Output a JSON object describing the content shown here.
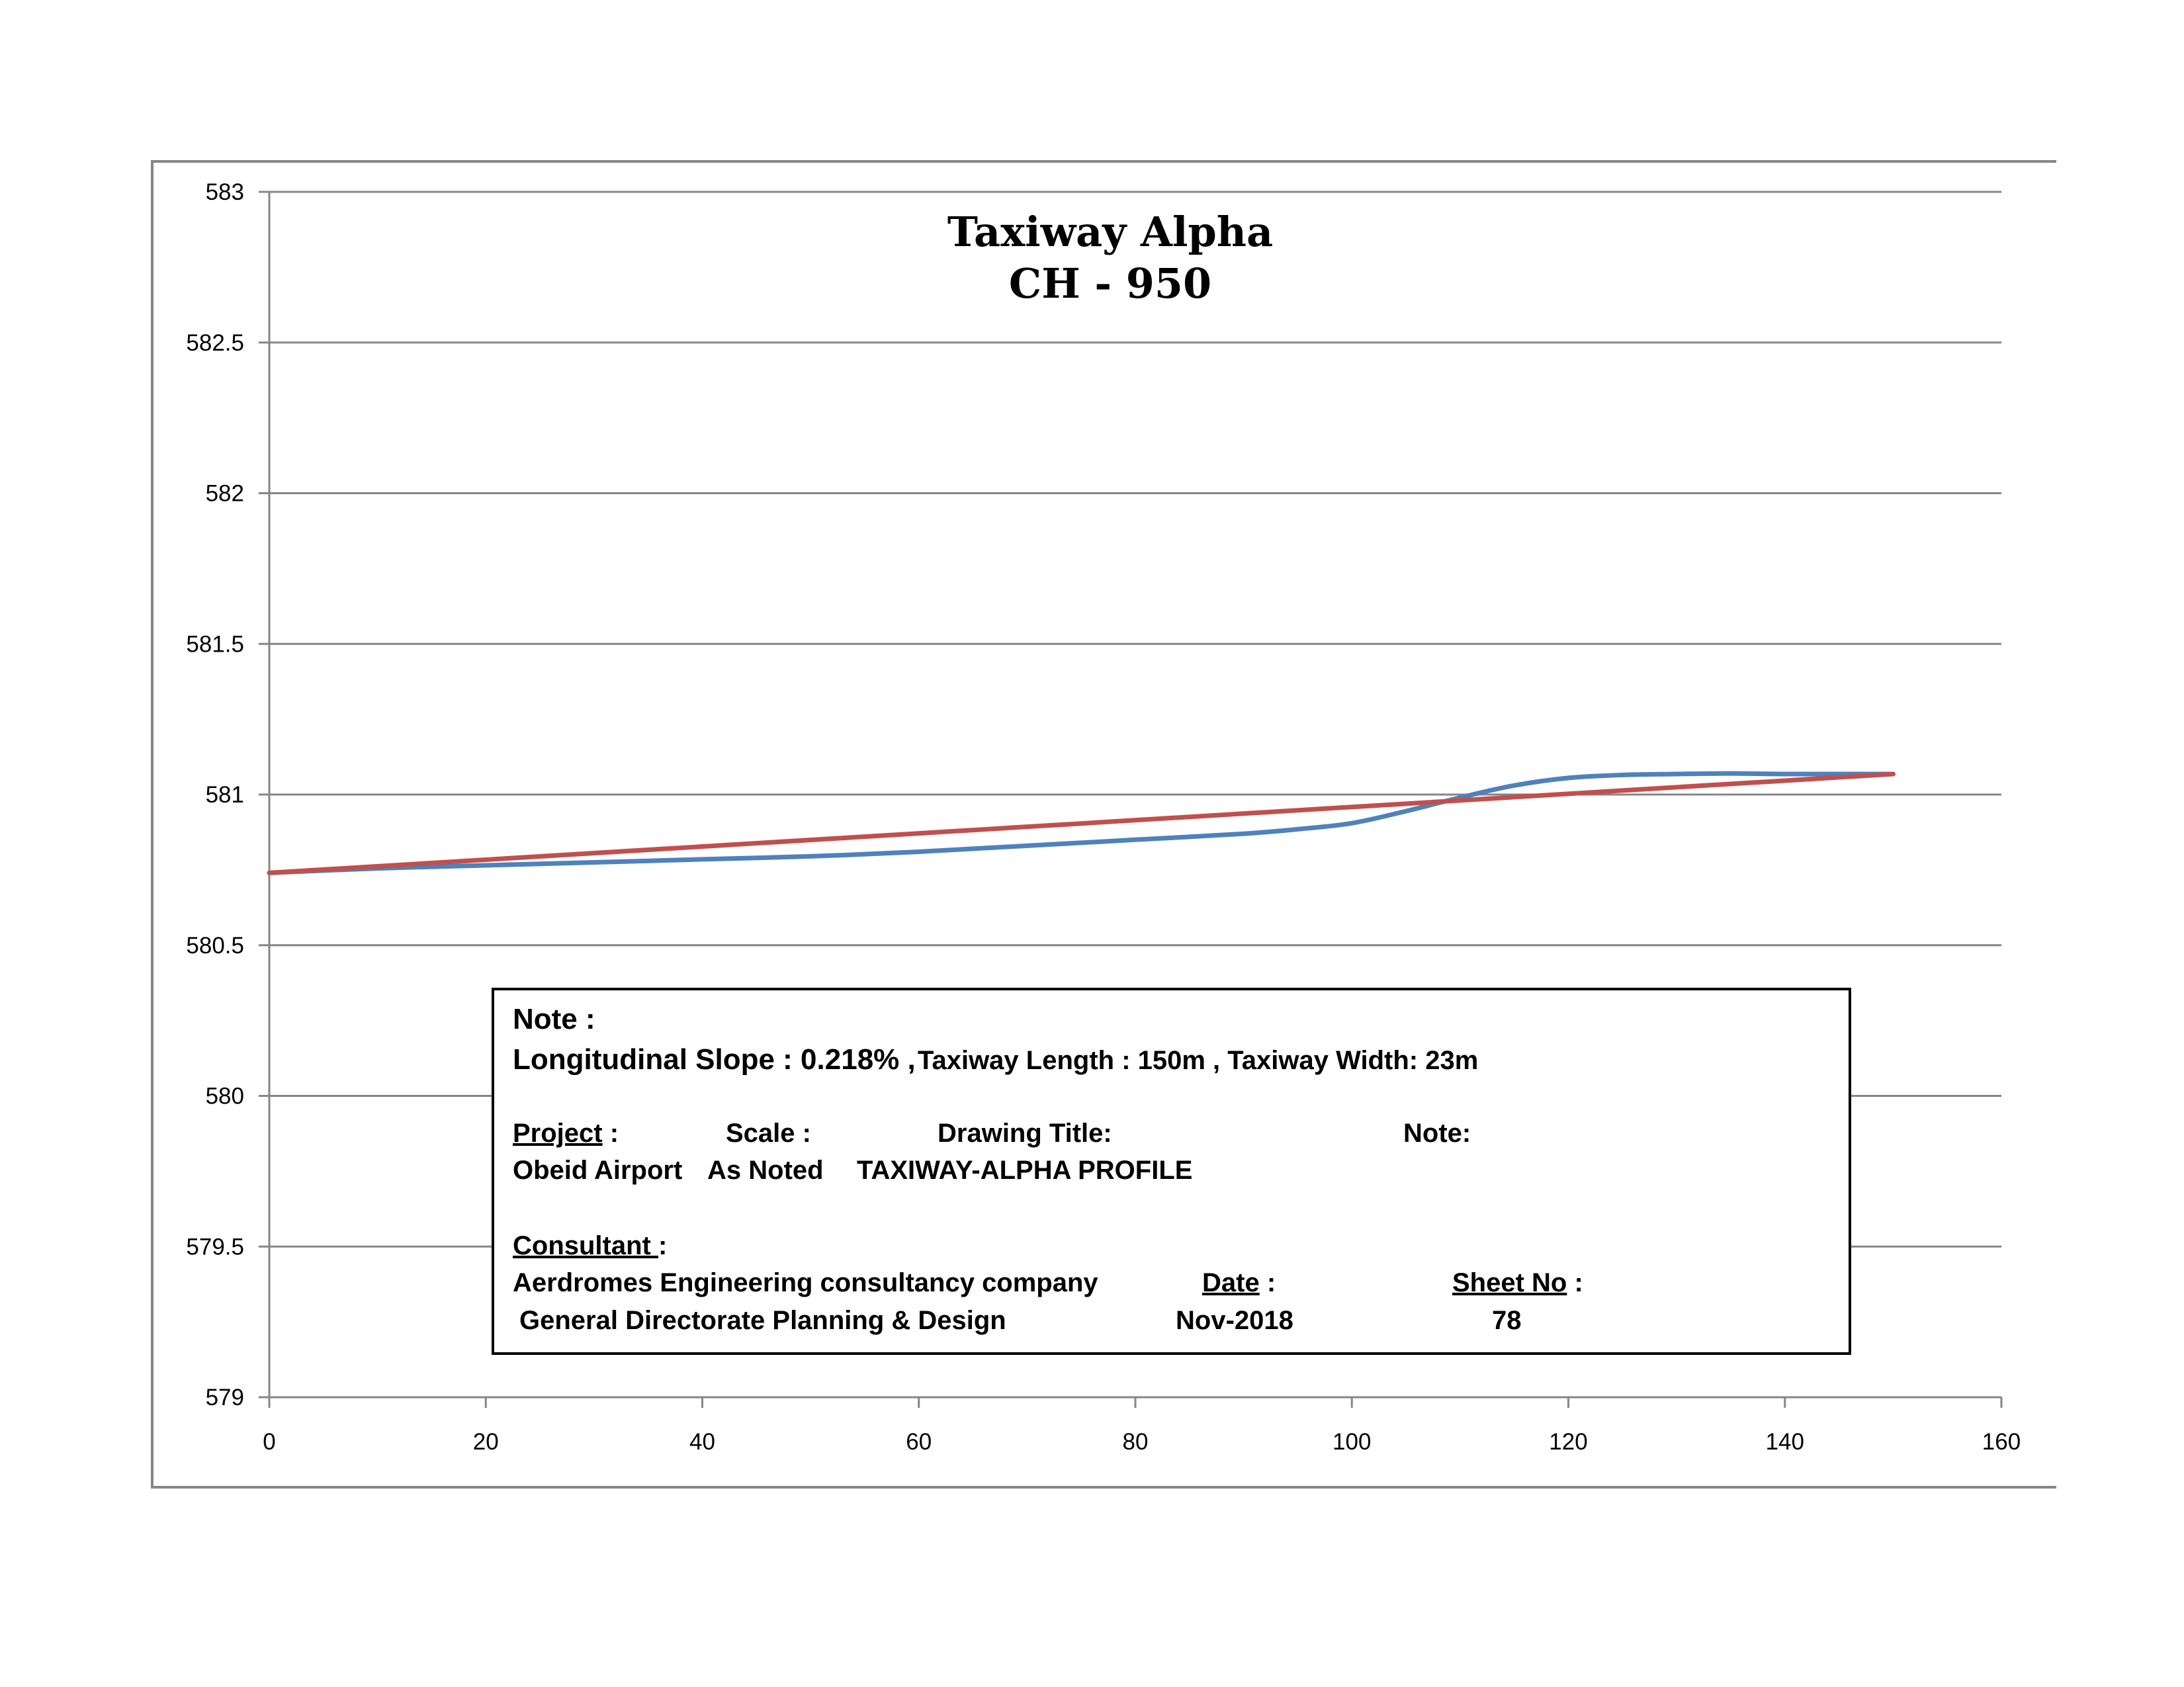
{
  "chart_data": {
    "type": "line",
    "title": "Taxiway Alpha",
    "subtitle": "CH - 950",
    "xlabel": "",
    "ylabel": "",
    "xlim": [
      0,
      160
    ],
    "ylim": [
      579,
      583
    ],
    "x_ticks": [
      0,
      20,
      40,
      60,
      80,
      100,
      120,
      140,
      160
    ],
    "y_ticks": [
      579,
      579.5,
      580,
      580.5,
      581,
      581.5,
      582,
      582.5,
      583
    ],
    "y_tick_labels": [
      "579",
      "579.5",
      "580",
      "580.5",
      "581",
      "581.5",
      "582",
      "582.5",
      "583"
    ],
    "grid": true,
    "legend": "none",
    "series": [
      {
        "color": "#4f81bd",
        "x": [
          0,
          10,
          20,
          30,
          40,
          50,
          60,
          70,
          80,
          90,
          95,
          100,
          105,
          110,
          115,
          120,
          125,
          130,
          135,
          140,
          145,
          150
        ],
        "y": [
          580.74,
          580.755,
          580.765,
          580.775,
          580.785,
          580.795,
          580.81,
          580.83,
          580.85,
          580.87,
          580.885,
          580.905,
          580.945,
          580.99,
          581.03,
          581.055,
          581.065,
          581.068,
          581.07,
          581.068,
          581.068,
          581.068
        ]
      },
      {
        "color": "#c0504d",
        "x": [
          0,
          150
        ],
        "y": [
          580.74,
          581.068
        ]
      }
    ]
  },
  "note_box": {
    "note_heading": "Note :",
    "slope_text": "Longitudinal Slope : 0.218% ,",
    "length_width_text": "Taxiway Length : 150m ,  Taxiway Width: 23m",
    "project_label": "Project",
    "project_colon": " :",
    "scale_label": "Scale :",
    "drawing_title_label": "Drawing Title:",
    "note_label": "Note:",
    "project_value": "Obeid Airport",
    "scale_value": "As Noted",
    "drawing_title_value": "TAXIWAY-ALPHA PROFILE",
    "consultant_label": "Consultant ",
    "consultant_colon": ":",
    "consultant_line1": "Aerdromes Engineering consultancy company",
    "consultant_line2": "General Directorate Planning & Design",
    "date_label": "Date",
    "date_colon": " :",
    "date_value": "Nov-2018",
    "sheet_label": "Sheet No",
    "sheet_colon": "  :",
    "sheet_value": "78"
  }
}
